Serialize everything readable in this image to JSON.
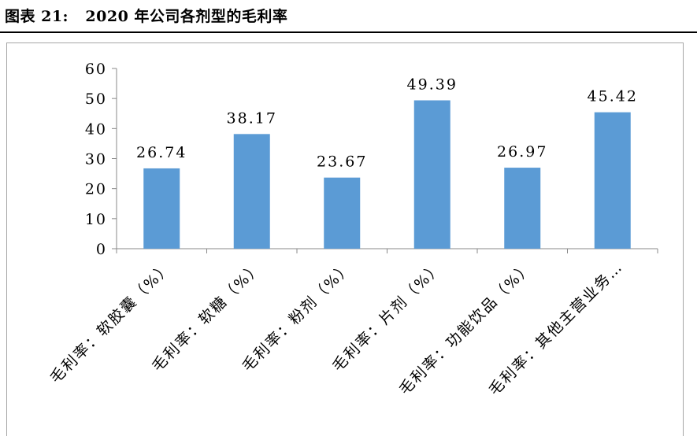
{
  "figure": {
    "title": "图表 21:   2020 年公司各剂型的毛利率"
  },
  "chart_data": {
    "type": "bar",
    "categories": [
      "毛利率：软胶囊（%）",
      "毛利率：软糖（%）",
      "毛利率：粉剂（%）",
      "毛利率：片剂（%）",
      "毛利率：功能饮品（%）",
      "毛利率：其他主营业务…"
    ],
    "values": [
      26.74,
      38.17,
      23.67,
      49.39,
      26.97,
      45.42
    ],
    "value_labels": [
      "26.74",
      "38.17",
      "23.67",
      "49.39",
      "26.97",
      "45.42"
    ],
    "title": "",
    "xlabel": "",
    "ylabel": "",
    "ylim": [
      0,
      60
    ],
    "yticks": [
      0,
      10,
      20,
      30,
      40,
      50,
      60
    ],
    "grid": false,
    "legend": "none",
    "bar_color": "#5b9bd5"
  }
}
